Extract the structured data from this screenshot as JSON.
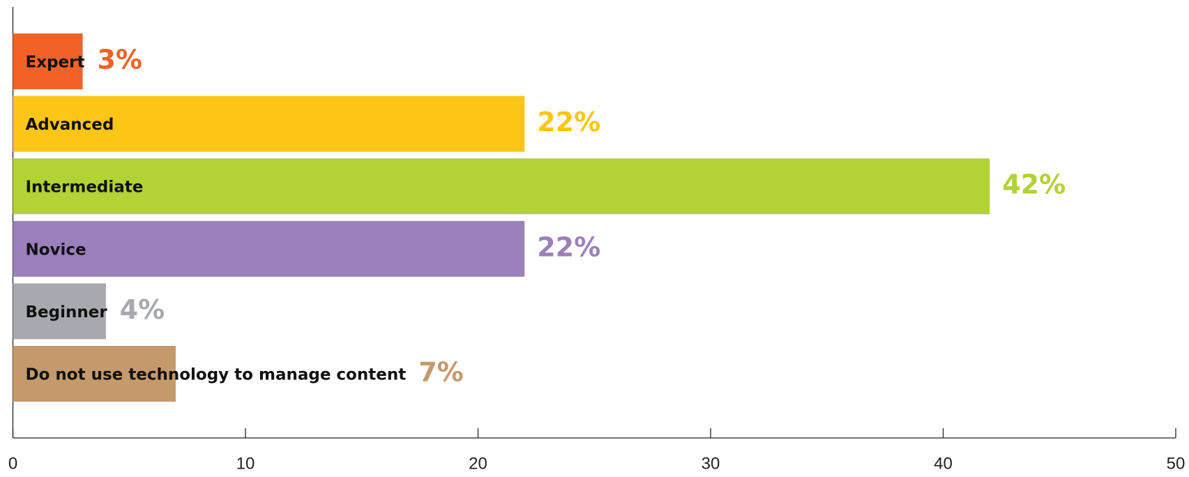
{
  "chart_data": {
    "type": "barh",
    "categories": [
      "Expert",
      "Advanced",
      "Intermediate",
      "Novice",
      "Beginner",
      "Do not use technology to manage content"
    ],
    "values": [
      3,
      22,
      42,
      22,
      4,
      7
    ],
    "value_labels": [
      "3%",
      "22%",
      "42%",
      "22%",
      "4%",
      "7%"
    ],
    "colors": [
      "#f26227",
      "#fdc515",
      "#b2d235",
      "#9b80bb",
      "#a7a9ac",
      "#c49a6c"
    ],
    "xlim": [
      0,
      50
    ],
    "xticks": [
      0,
      10,
      20,
      30,
      40,
      50
    ],
    "grid": false
  }
}
